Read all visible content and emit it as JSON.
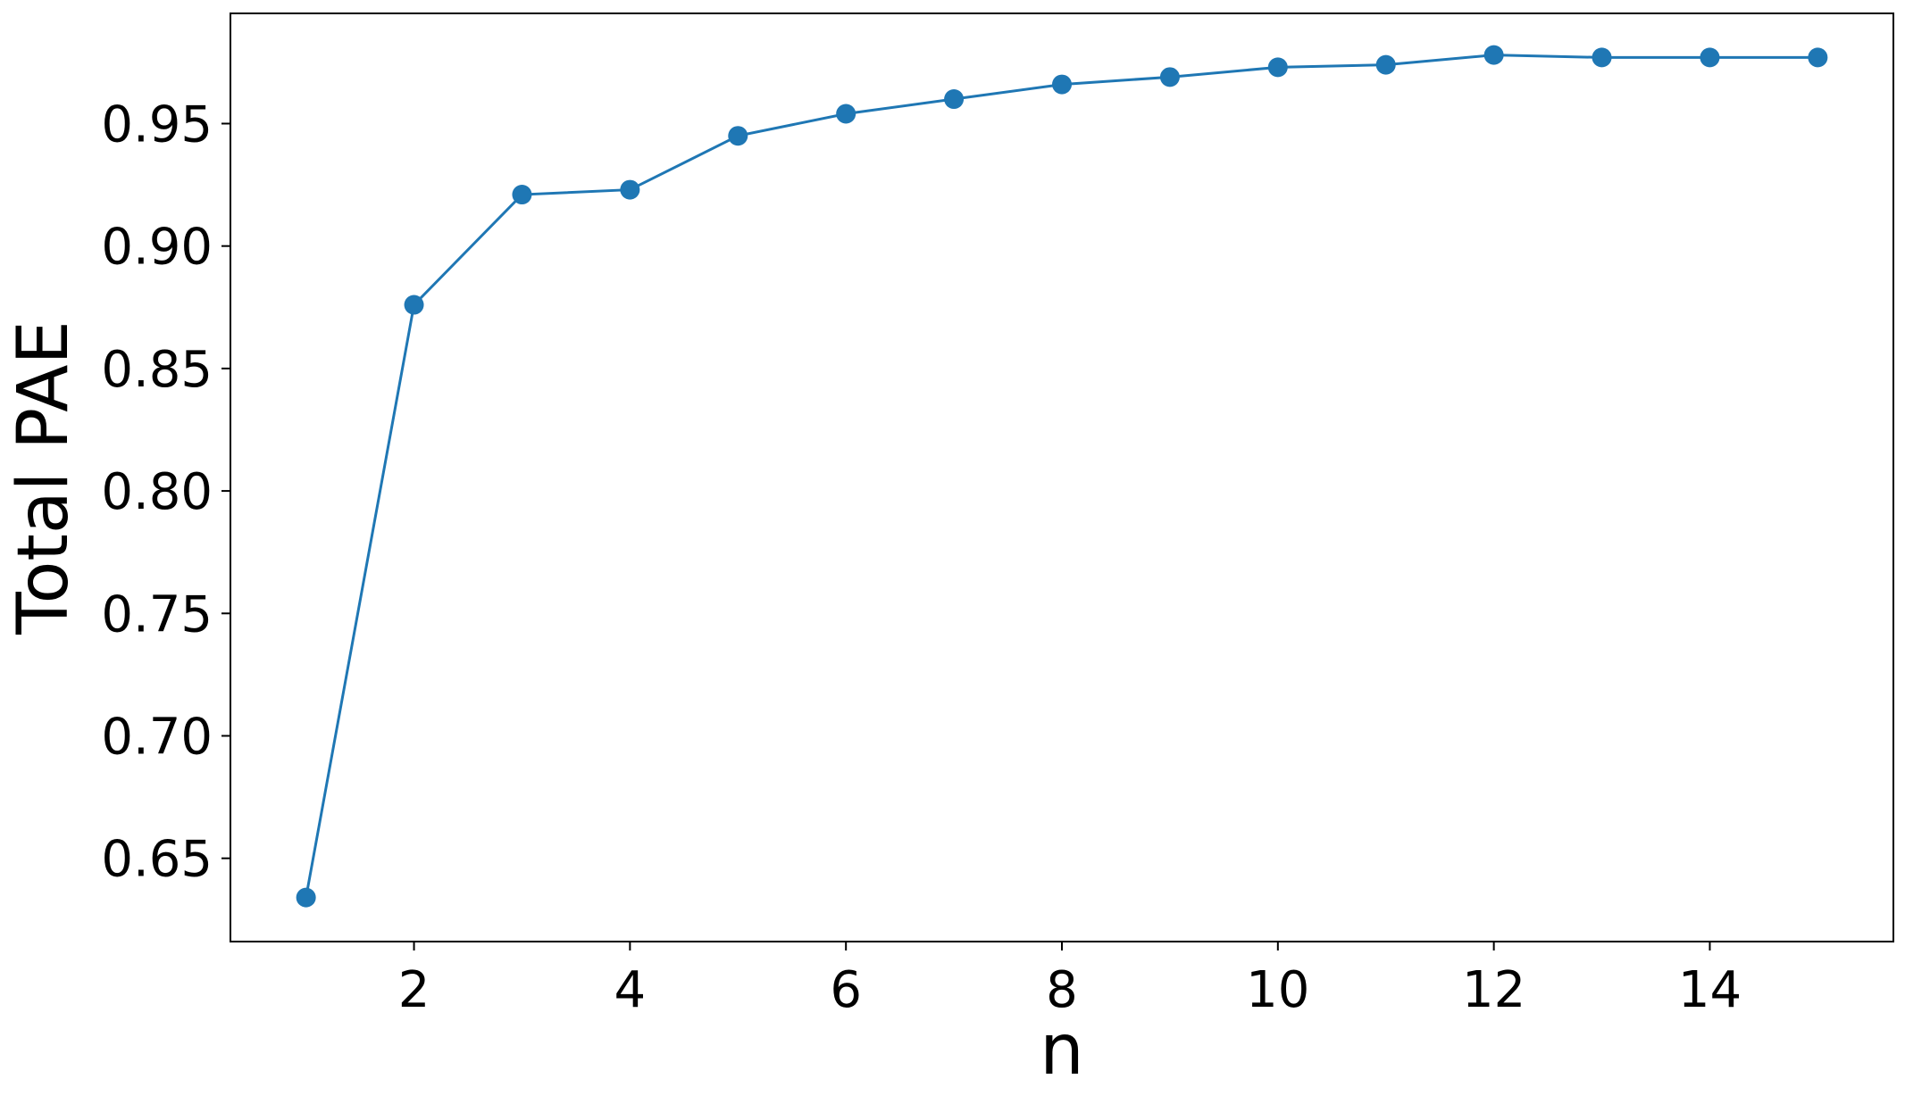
{
  "chart_data": {
    "type": "line",
    "title": "",
    "xlabel": "n",
    "ylabel": "Total PAE",
    "xlim": [
      0.3,
      15.7
    ],
    "ylim": [
      0.616,
      0.995
    ],
    "xticks": [
      2,
      4,
      6,
      8,
      10,
      12,
      14
    ],
    "xtick_labels": [
      "2",
      "4",
      "6",
      "8",
      "10",
      "12",
      "14"
    ],
    "yticks": [
      0.65,
      0.7,
      0.75,
      0.8,
      0.85,
      0.9,
      0.95
    ],
    "ytick_labels": [
      "0.65",
      "0.70",
      "0.75",
      "0.80",
      "0.85",
      "0.90",
      "0.95"
    ],
    "grid": false,
    "series": [
      {
        "color": "#1f77b4",
        "marker": "circle",
        "x": [
          1,
          2,
          3,
          4,
          5,
          6,
          7,
          8,
          9,
          10,
          11,
          12,
          13,
          14,
          15
        ],
        "y": [
          0.634,
          0.876,
          0.921,
          0.923,
          0.945,
          0.954,
          0.96,
          0.966,
          0.969,
          0.973,
          0.974,
          0.978,
          0.977,
          0.977,
          0.977
        ]
      }
    ]
  }
}
